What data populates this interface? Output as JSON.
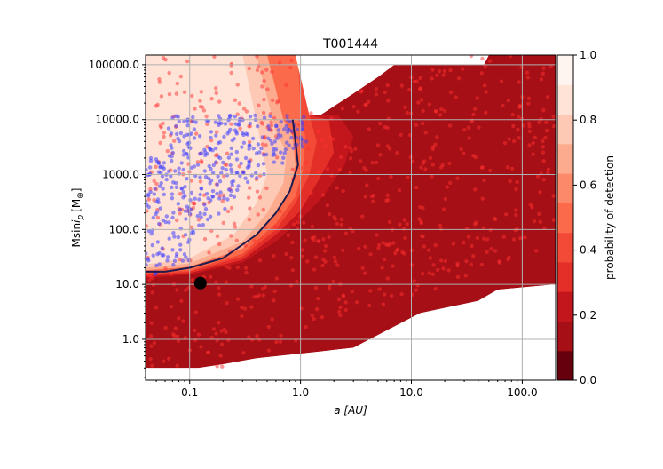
{
  "chart_data": {
    "type": "heatmap",
    "title": "T001444",
    "xlabel": "a [AU]",
    "ylabel": "Msin",
    "ylabel_sub": "p",
    "ylabel_unit": "[M",
    "ylabel_unit_sym": "⊕",
    "ylabel_unit_close": "]",
    "xscale": "log",
    "yscale": "log",
    "xlim": [
      0.04,
      200
    ],
    "ylim": [
      0.18,
      150000
    ],
    "xticks": [
      0.1,
      1.0,
      10.0,
      100.0
    ],
    "xtick_labels": [
      "0.1",
      "1.0",
      "10.0",
      "100.0"
    ],
    "yticks": [
      1.0,
      10.0,
      100.0,
      1000.0,
      10000.0,
      100000.0
    ],
    "ytick_labels": [
      "1.0",
      "10.0",
      "100.0",
      "1000.0",
      "10000.0",
      "100000.0"
    ],
    "grid": true,
    "colorbar": {
      "label": "probability of detection",
      "range": [
        0.0,
        1.0
      ],
      "ticks": [
        0.0,
        0.2,
        0.4,
        0.6,
        0.8,
        1.0
      ],
      "tick_labels": [
        "0.0",
        "0.2",
        "0.4",
        "0.6",
        "0.8",
        "1.0"
      ],
      "colors": [
        "#67000d",
        "#a50f15",
        "#c3161c",
        "#e32f27",
        "#f24a37",
        "#fb6a4a",
        "#fc8a6a",
        "#fcab8f",
        "#fdc9b4",
        "#fee3d6",
        "#fff5f0"
      ]
    },
    "contour_line": {
      "color": "#1f1a4d",
      "points": [
        [
          0.04,
          17
        ],
        [
          0.06,
          17
        ],
        [
          0.1,
          20
        ],
        [
          0.2,
          30
        ],
        [
          0.4,
          80
        ],
        [
          0.6,
          200
        ],
        [
          0.8,
          500
        ],
        [
          0.95,
          1500
        ],
        [
          0.9,
          4000
        ],
        [
          0.85,
          10000
        ]
      ]
    },
    "planet": {
      "a": 0.125,
      "m": 10.5,
      "color": "#000000"
    },
    "colors": {
      "detected_points": "#4040ff",
      "undetected_points": "#ff3030",
      "dark_region": "#8b0e14"
    }
  }
}
